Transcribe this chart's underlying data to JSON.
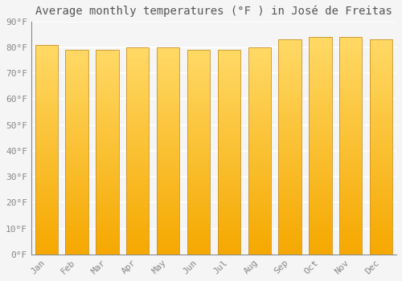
{
  "title": "Average monthly temperatures (°F ) in José de Freitas",
  "months": [
    "Jan",
    "Feb",
    "Mar",
    "Apr",
    "May",
    "Jun",
    "Jul",
    "Aug",
    "Sep",
    "Oct",
    "Nov",
    "Dec"
  ],
  "values": [
    81,
    79,
    79,
    80,
    80,
    79,
    79,
    80,
    83,
    84,
    84,
    83
  ],
  "bar_color_bottom": "#F5A800",
  "bar_color_top": "#FFD966",
  "bar_edge_color": "#C8922A",
  "background_color": "#F5F5F5",
  "ylim": [
    0,
    90
  ],
  "yticks": [
    0,
    10,
    20,
    30,
    40,
    50,
    60,
    70,
    80,
    90
  ],
  "ytick_labels": [
    "0°F",
    "10°F",
    "20°F",
    "30°F",
    "40°F",
    "50°F",
    "60°F",
    "70°F",
    "80°F",
    "90°F"
  ],
  "font_family": "monospace",
  "title_fontsize": 10,
  "tick_fontsize": 8,
  "grid_color": "#FFFFFF",
  "bar_width": 0.75,
  "n_gradient_steps": 100
}
